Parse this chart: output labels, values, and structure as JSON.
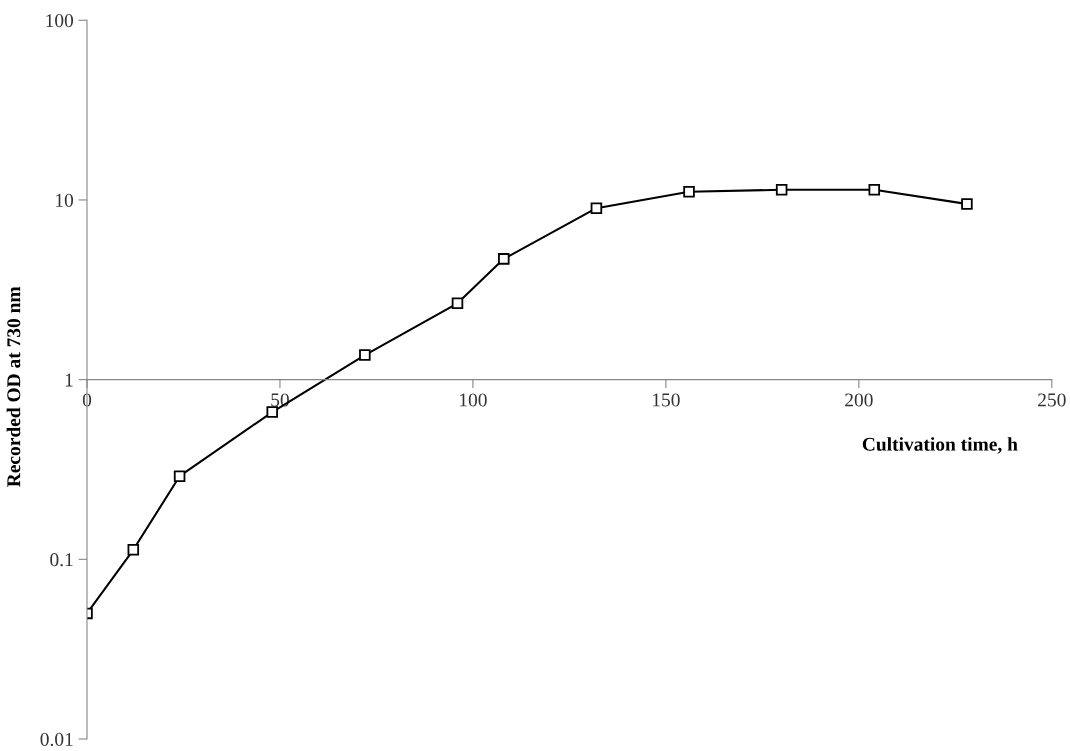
{
  "chart_data": {
    "type": "line",
    "xlabel": "Cultivation time, h",
    "ylabel": "Recorded OD at 730 nm",
    "x": [
      0,
      12,
      24,
      48,
      72,
      96,
      108,
      132,
      156,
      180,
      204,
      228
    ],
    "series": [
      {
        "color": "#000000",
        "values": [
          0.05,
          0.113,
          0.29,
          0.66,
          1.37,
          2.66,
          4.7,
          9.0,
          11.1,
          11.4,
          11.4,
          9.5
        ]
      }
    ],
    "log": true,
    "xlim": [
      0,
      250
    ],
    "xticks": [
      0,
      50,
      100,
      150,
      200,
      250
    ],
    "ylim": [
      0.01,
      100
    ],
    "yticks": [
      {
        "value": 0.01,
        "label": "0.01"
      },
      {
        "value": 0.1,
        "label": "0.1"
      },
      1,
      10,
      100
    ],
    "marker": "square",
    "line_style": "solid",
    "grid": false
  }
}
